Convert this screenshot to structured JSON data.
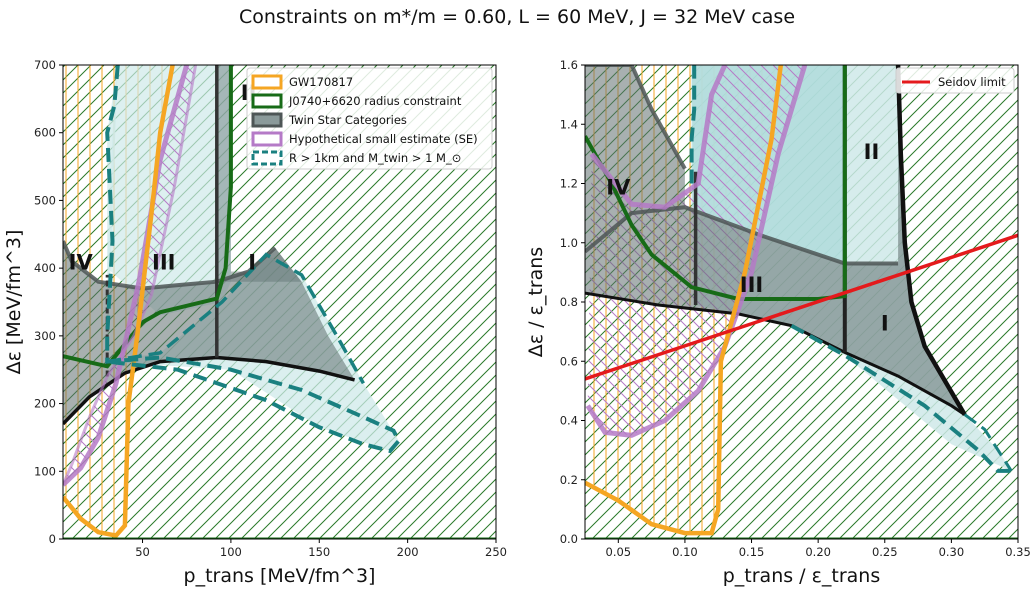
{
  "title": "Constraints on m*/m = 0.60, L = 60 MeV, J = 32 MeV case",
  "colors": {
    "gw": "#f5a623",
    "j0740": "#176b17",
    "twin": "#4d5656",
    "se": "#b57ac7",
    "rm": "#1a8080",
    "seidov": "#e41a1c",
    "twin_fill": "#607070",
    "rm_fill": "#cfe9e9"
  },
  "chart_data": [
    {
      "type": "area",
      "id": "left",
      "xlabel": "p_trans [MeV/fm^3]",
      "ylabel": "Δε [MeV/fm^3]",
      "xlim": [
        5,
        250
      ],
      "ylim": [
        0,
        700
      ],
      "xticks": [
        "50",
        "100",
        "150",
        "200",
        "250"
      ],
      "xtick_values": [
        50,
        100,
        150,
        200,
        250
      ],
      "yticks": [
        "0",
        "100",
        "200",
        "300",
        "400",
        "500",
        "600",
        "700"
      ],
      "ytick_values": [
        0,
        100,
        200,
        300,
        400,
        500,
        600,
        700
      ],
      "regions": [
        {
          "label": "IV",
          "x": 15,
          "y": 410
        },
        {
          "label": "III",
          "x": 62,
          "y": 410
        },
        {
          "label": "II",
          "x": 110,
          "y": 660
        },
        {
          "label": "I",
          "x": 112,
          "y": 410
        }
      ],
      "legend": {
        "position": "top-right",
        "entries": [
          {
            "label": "GW170817",
            "key": "gw"
          },
          {
            "label": "J0740+6620 radius constraint",
            "key": "j0740"
          },
          {
            "label": "Twin Star Categories",
            "key": "twin"
          },
          {
            "label": "Hypothetical small estimate (SE)",
            "key": "se"
          },
          {
            "label": "R > 1km and M_twin > 1 M_⊙",
            "key": "rm"
          }
        ]
      },
      "series": {
        "gw_boundary": [
          [
            5,
            62
          ],
          [
            15,
            30
          ],
          [
            25,
            10
          ],
          [
            35,
            5
          ],
          [
            40,
            20
          ],
          [
            42,
            200
          ],
          [
            47,
            300
          ],
          [
            55,
            480
          ],
          [
            60,
            600
          ],
          [
            67,
            700
          ]
        ],
        "rm_boundary": [
          [
            36,
            700
          ],
          [
            34,
            640
          ],
          [
            30,
            600
          ],
          [
            33,
            440
          ],
          [
            30,
            300
          ],
          [
            30,
            262
          ],
          [
            60,
            268
          ],
          [
            100,
            250
          ],
          [
            140,
            220
          ],
          [
            175,
            180
          ],
          [
            192,
            160
          ],
          [
            195,
            145
          ],
          [
            190,
            130
          ],
          [
            175,
            140
          ],
          [
            150,
            165
          ],
          [
            120,
            205
          ],
          [
            70,
            250
          ],
          [
            30,
            262
          ]
        ],
        "rm_upper": [
          [
            30,
            262
          ],
          [
            60,
            275
          ],
          [
            95,
            350
          ],
          [
            120,
            420
          ],
          [
            140,
            390
          ],
          [
            160,
            300
          ],
          [
            175,
            230
          ]
        ],
        "se_boundary": [
          [
            5,
            80
          ],
          [
            15,
            105
          ],
          [
            25,
            150
          ],
          [
            35,
            230
          ],
          [
            48,
            380
          ],
          [
            60,
            560
          ],
          [
            75,
            700
          ]
        ],
        "se_lower": [
          [
            5,
            80
          ],
          [
            10,
            110
          ],
          [
            20,
            180
          ],
          [
            30,
            240
          ],
          [
            45,
            300
          ],
          [
            55,
            360
          ],
          [
            68,
            520
          ],
          [
            80,
            700
          ]
        ],
        "j0740_boundary": [
          [
            5,
            270
          ],
          [
            30,
            255
          ],
          [
            50,
            320
          ],
          [
            60,
            335
          ],
          [
            92,
            355
          ],
          [
            97,
            400
          ],
          [
            100,
            520
          ],
          [
            100,
            700
          ]
        ],
        "twin_upper": [
          [
            5,
            440
          ],
          [
            10,
            410
          ],
          [
            25,
            380
          ],
          [
            50,
            370
          ],
          [
            70,
            375
          ],
          [
            92,
            380
          ],
          [
            110,
            395
          ],
          [
            125,
            430
          ]
        ],
        "twin_lower": [
          [
            5,
            170
          ],
          [
            20,
            210
          ],
          [
            40,
            245
          ],
          [
            60,
            262
          ],
          [
            92,
            268
          ],
          [
            120,
            262
          ],
          [
            150,
            248
          ],
          [
            170,
            235
          ]
        ],
        "twin_left_divider": [
          [
            30,
            240
          ],
          [
            30,
            390
          ]
        ],
        "twin_right_divider": [
          [
            92,
            268
          ],
          [
            92,
            700
          ]
        ],
        "green_bottom": [
          [
            5,
            0
          ],
          [
            250,
            0
          ]
        ]
      }
    },
    {
      "type": "area",
      "id": "right",
      "xlabel": "p_trans / ε_trans",
      "ylabel": "Δε / ε_trans",
      "xlim": [
        0.025,
        0.35
      ],
      "ylim": [
        0.0,
        1.6
      ],
      "xticks": [
        "0.05",
        "0.10",
        "0.15",
        "0.20",
        "0.25",
        "0.30",
        "0.35"
      ],
      "xtick_values": [
        0.05,
        0.1,
        0.15,
        0.2,
        0.25,
        0.3,
        0.35
      ],
      "yticks": [
        "0.0",
        "0.2",
        "0.4",
        "0.6",
        "0.8",
        "1.0",
        "1.2",
        "1.4",
        "1.6"
      ],
      "ytick_values": [
        0.0,
        0.2,
        0.4,
        0.6,
        0.8,
        1.0,
        1.2,
        1.4,
        1.6
      ],
      "regions": [
        {
          "label": "IV",
          "x": 0.05,
          "y": 1.19
        },
        {
          "label": "III",
          "x": 0.15,
          "y": 0.86
        },
        {
          "label": "II",
          "x": 0.24,
          "y": 1.31
        },
        {
          "label": "I",
          "x": 0.25,
          "y": 0.73
        }
      ],
      "legend": {
        "position": "top-right",
        "entries": [
          {
            "label": "Seidov limit",
            "key": "seidov"
          }
        ]
      },
      "series": {
        "seidov": [
          [
            0.025,
            0.54
          ],
          [
            0.35,
            1.025
          ]
        ],
        "gw_boundary": [
          [
            0.025,
            0.19
          ],
          [
            0.05,
            0.13
          ],
          [
            0.075,
            0.05
          ],
          [
            0.1,
            0.02
          ],
          [
            0.12,
            0.02
          ],
          [
            0.125,
            0.1
          ],
          [
            0.127,
            0.6
          ],
          [
            0.145,
            0.9
          ],
          [
            0.165,
            1.35
          ],
          [
            0.172,
            1.6
          ]
        ],
        "se_boundary": [
          [
            0.027,
            0.45
          ],
          [
            0.04,
            0.36
          ],
          [
            0.06,
            0.35
          ],
          [
            0.085,
            0.4
          ],
          [
            0.11,
            0.5
          ],
          [
            0.13,
            0.65
          ],
          [
            0.15,
            0.9
          ],
          [
            0.17,
            1.3
          ],
          [
            0.19,
            1.6
          ]
        ],
        "se_upper": [
          [
            0.03,
            1.3
          ],
          [
            0.06,
            1.13
          ],
          [
            0.085,
            1.12
          ],
          [
            0.11,
            1.2
          ],
          [
            0.12,
            1.5
          ],
          [
            0.13,
            1.6
          ]
        ],
        "j0740_boundary": [
          [
            0.025,
            1.36
          ],
          [
            0.045,
            1.2
          ],
          [
            0.06,
            1.06
          ],
          [
            0.075,
            0.96
          ],
          [
            0.105,
            0.85
          ],
          [
            0.14,
            0.81
          ],
          [
            0.2,
            0.81
          ],
          [
            0.22,
            0.82
          ],
          [
            0.22,
            1.6
          ]
        ],
        "twin_upper": [
          [
            0.025,
            0.97
          ],
          [
            0.06,
            1.1
          ],
          [
            0.1,
            1.12
          ],
          [
            0.16,
            1.02
          ],
          [
            0.22,
            0.93
          ],
          [
            0.26,
            0.93
          ]
        ],
        "twin_lower": [
          [
            0.025,
            0.83
          ],
          [
            0.08,
            0.79
          ],
          [
            0.14,
            0.76
          ],
          [
            0.18,
            0.72
          ],
          [
            0.22,
            0.63
          ],
          [
            0.26,
            0.55
          ],
          [
            0.3,
            0.45
          ],
          [
            0.31,
            0.42
          ]
        ],
        "twin_left_divider": [
          [
            0.108,
            0.79
          ],
          [
            0.108,
            1.24
          ]
        ],
        "twin_right_divider": [
          [
            0.22,
            0.63
          ],
          [
            0.22,
            1.6
          ]
        ],
        "twin_right_edge": [
          [
            0.26,
            1.6
          ],
          [
            0.262,
            1.3
          ],
          [
            0.265,
            1.0
          ],
          [
            0.27,
            0.8
          ],
          [
            0.28,
            0.65
          ],
          [
            0.31,
            0.42
          ]
        ],
        "rm_lower": [
          [
            0.18,
            0.72
          ],
          [
            0.22,
            0.62
          ],
          [
            0.28,
            0.45
          ],
          [
            0.32,
            0.3
          ],
          [
            0.335,
            0.23
          ],
          [
            0.345,
            0.23
          ]
        ],
        "rm_upper": [
          [
            0.31,
            0.42
          ],
          [
            0.325,
            0.37
          ],
          [
            0.335,
            0.3
          ],
          [
            0.345,
            0.23
          ]
        ],
        "rm_left": [
          [
            0.105,
            1.2
          ],
          [
            0.105,
            1.35
          ],
          [
            0.107,
            1.45
          ],
          [
            0.107,
            1.6
          ]
        ]
      }
    }
  ]
}
